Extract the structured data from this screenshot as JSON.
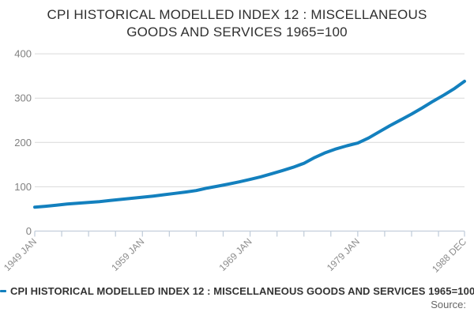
{
  "title": {
    "line1": "CPI HISTORICAL MODELLED INDEX 12 : MISCELLANEOUS",
    "line2": "GOODS AND SERVICES 1965=100"
  },
  "legend": {
    "series_label": "CPI HISTORICAL MODELLED INDEX 12 : MISCELLANEOUS GOODS AND SERVICES 1965=100"
  },
  "footer": {
    "source_label": "Source:"
  },
  "colors": {
    "line": "#1380be",
    "grid": "#d9d9d9",
    "axis": "#c3cedb",
    "x_tick_label": "#8c8c8c",
    "y_tick_label": "#808080",
    "title_text": "#2f2f2f",
    "legend_text": "#333333",
    "source_text": "#666666"
  },
  "chart_data": {
    "type": "line",
    "title": "CPI HISTORICAL MODELLED INDEX 12 : MISCELLANEOUS GOODS AND SERVICES 1965=100",
    "xlabel": "",
    "ylabel": "",
    "ylim": [
      0,
      400
    ],
    "y_ticks": [
      0,
      100,
      200,
      300,
      400
    ],
    "grid": true,
    "legend_position": "bottom-left",
    "x_axis_unit": "months since 1949 JAN",
    "x_total_months": 479,
    "x_minor_ticks_months": [
      0,
      30,
      60,
      90,
      120,
      150,
      180,
      210,
      240,
      270,
      300,
      330,
      360,
      390,
      420,
      450,
      479
    ],
    "x_labeled_ticks": [
      {
        "m": 0,
        "label": "1949 JAN"
      },
      {
        "m": 120,
        "label": "1959 JAN"
      },
      {
        "m": 240,
        "label": "1969 JAN"
      },
      {
        "m": 360,
        "label": "1979 JAN"
      },
      {
        "m": 479,
        "label": "1988 DEC"
      }
    ],
    "series": [
      {
        "name": "CPI HISTORICAL MODELLED INDEX 12 : MISCELLANEOUS GOODS AND SERVICES 1965=100",
        "points": [
          [
            0,
            54
          ],
          [
            12,
            56
          ],
          [
            24,
            58.5
          ],
          [
            36,
            61
          ],
          [
            48,
            63
          ],
          [
            60,
            64.5
          ],
          [
            72,
            66.5
          ],
          [
            84,
            69
          ],
          [
            96,
            71.5
          ],
          [
            108,
            74
          ],
          [
            120,
            76.5
          ],
          [
            132,
            79
          ],
          [
            144,
            82
          ],
          [
            156,
            85
          ],
          [
            168,
            88
          ],
          [
            180,
            91.5
          ],
          [
            192,
            97
          ],
          [
            204,
            101.5
          ],
          [
            216,
            106
          ],
          [
            228,
            111
          ],
          [
            240,
            116.5
          ],
          [
            252,
            122.5
          ],
          [
            264,
            129.5
          ],
          [
            276,
            136.5
          ],
          [
            288,
            144
          ],
          [
            300,
            153
          ],
          [
            312,
            166
          ],
          [
            324,
            177
          ],
          [
            336,
            185.5
          ],
          [
            348,
            192.5
          ],
          [
            360,
            198.5
          ],
          [
            372,
            210
          ],
          [
            384,
            224
          ],
          [
            396,
            238
          ],
          [
            408,
            251
          ],
          [
            420,
            264
          ],
          [
            432,
            278
          ],
          [
            444,
            293
          ],
          [
            456,
            307
          ],
          [
            468,
            322
          ],
          [
            479,
            338
          ]
        ]
      }
    ]
  }
}
